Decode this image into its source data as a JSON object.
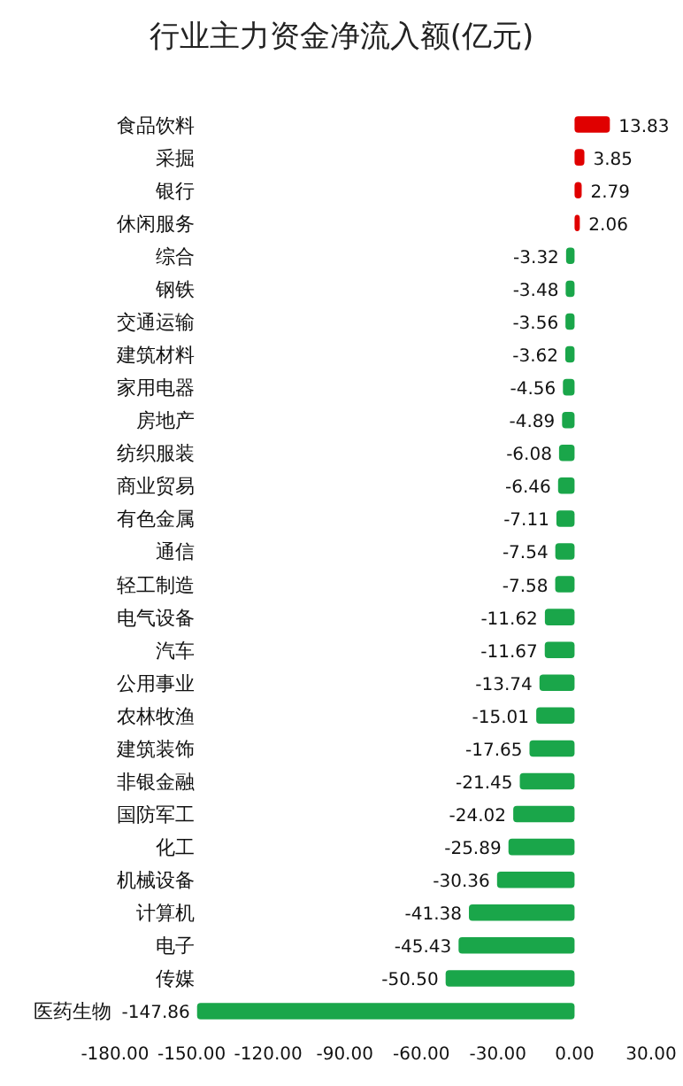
{
  "chart_data": {
    "type": "bar",
    "orientation": "horizontal",
    "title": "行业主力资金净流入额(亿元)",
    "categories": [
      "食品饮料",
      "采掘",
      "银行",
      "休闲服务",
      "综合",
      "钢铁",
      "交通运输",
      "建筑材料",
      "家用电器",
      "房地产",
      "纺织服装",
      "商业贸易",
      "有色金属",
      "通信",
      "轻工制造",
      "电气设备",
      "汽车",
      "公用事业",
      "农林牧渔",
      "建筑装饰",
      "非银金融",
      "国防军工",
      "化工",
      "机械设备",
      "计算机",
      "电子",
      "传媒",
      "医药生物"
    ],
    "values": [
      13.83,
      3.85,
      2.79,
      2.06,
      -3.32,
      -3.48,
      -3.56,
      -3.62,
      -4.56,
      -4.89,
      -6.08,
      -6.46,
      -7.11,
      -7.54,
      -7.58,
      -11.62,
      -11.67,
      -13.74,
      -15.01,
      -17.65,
      -21.45,
      -24.02,
      -25.89,
      -30.36,
      -41.38,
      -45.43,
      -50.5,
      -147.86
    ],
    "value_labels": [
      "13.83",
      "3.85",
      "2.79",
      "2.06",
      "-3.32",
      "-3.48",
      "-3.56",
      "-3.62",
      "-4.56",
      "-4.89",
      "-6.08",
      "-6.46",
      "-7.11",
      "-7.54",
      "-7.58",
      "-11.62",
      "-11.67",
      "-13.74",
      "-15.01",
      "-17.65",
      "-21.45",
      "-24.02",
      "-25.89",
      "-30.36",
      "-41.38",
      "-45.43",
      "-50.50",
      "-147.86"
    ],
    "colors": [
      "#e00000",
      "#e00000",
      "#e00000",
      "#e00000",
      "#1aa64a",
      "#1aa64a",
      "#1aa64a",
      "#1aa64a",
      "#1aa64a",
      "#1aa64a",
      "#1aa64a",
      "#1aa64a",
      "#1aa64a",
      "#1aa64a",
      "#1aa64a",
      "#1aa64a",
      "#1aa64a",
      "#1aa64a",
      "#1aa64a",
      "#1aa64a",
      "#1aa64a",
      "#1aa64a",
      "#1aa64a",
      "#1aa64a",
      "#1aa64a",
      "#1aa64a",
      "#1aa64a",
      "#1aa64a"
    ],
    "xlim": [
      -180,
      30
    ],
    "xticks": [
      {
        "value": -180,
        "label": "-180.00"
      },
      {
        "value": -150,
        "label": "-150.00"
      },
      {
        "value": -120,
        "label": "-120.00"
      },
      {
        "value": -90,
        "label": "-90.00"
      },
      {
        "value": -60,
        "label": "-60.00"
      },
      {
        "value": -30,
        "label": "-30.00"
      },
      {
        "value": 0,
        "label": "0.00"
      },
      {
        "value": 30,
        "label": "30.00"
      }
    ],
    "grid": false
  }
}
